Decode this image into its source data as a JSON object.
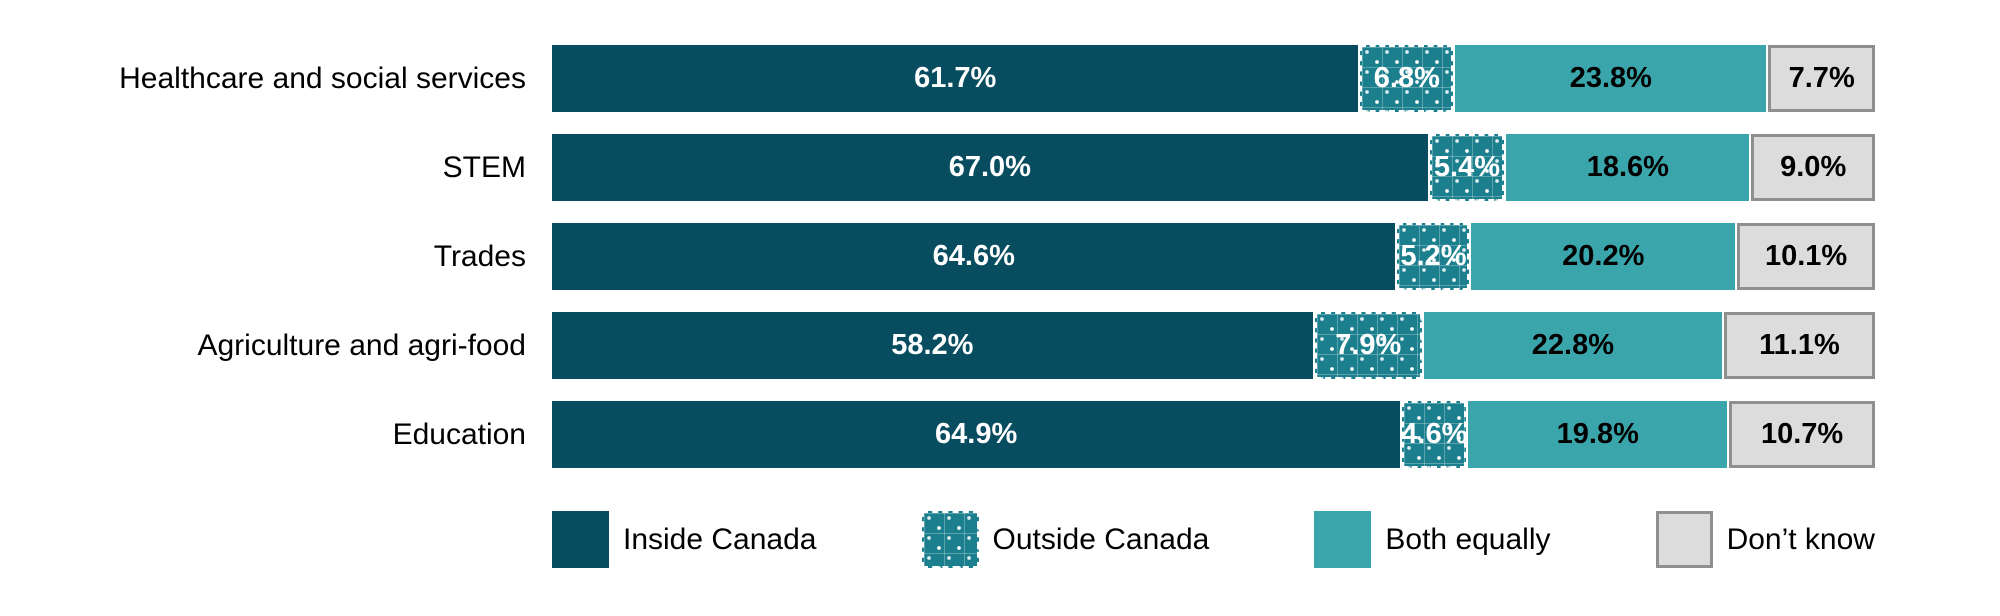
{
  "chart_data": {
    "type": "bar",
    "orientation": "horizontal",
    "stacked": true,
    "percent_total": 100,
    "title": "",
    "xlabel": "",
    "ylabel": "",
    "xlim": [
      0,
      100
    ],
    "grid": false,
    "legend_position": "bottom",
    "value_label_format": "one-decimal-percent",
    "categories": [
      "Healthcare and social services",
      "STEM",
      "Trades",
      "Agriculture and agri-food",
      "Education"
    ],
    "series": [
      {
        "key": "inside",
        "name": "Inside Canada",
        "values": [
          61.7,
          67.0,
          64.6,
          58.2,
          64.9
        ]
      },
      {
        "key": "outside",
        "name": "Outside Canada",
        "values": [
          6.8,
          5.4,
          5.2,
          7.9,
          4.6
        ]
      },
      {
        "key": "both",
        "name": "Both equally",
        "values": [
          23.8,
          18.6,
          20.2,
          22.8,
          19.8
        ]
      },
      {
        "key": "dontknow",
        "name": "Don’t know",
        "values": [
          7.7,
          9.0,
          10.1,
          11.1,
          10.7
        ]
      }
    ],
    "colors": {
      "inside": "#074c5f",
      "outside_background": "#1b7f8e",
      "outside_dots": "#ffffff",
      "both": "#3aa6ac",
      "dontknow_fill": "#dcdcdc",
      "dontknow_border": "#8f8f8f",
      "label_on_dark": "#ffffff",
      "label_on_light": "#000000",
      "background": "#ffffff"
    }
  }
}
